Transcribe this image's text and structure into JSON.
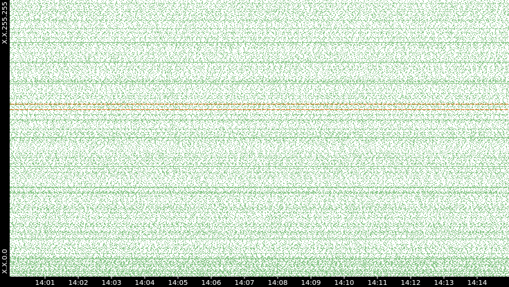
{
  "chart_data": {
    "type": "scatter",
    "y_axis_labels": {
      "top": "X.X.255.255",
      "bottom": "X.X.0.0"
    },
    "categories": [
      "14:01",
      "14:02",
      "14:03",
      "14:04",
      "14:05",
      "14:06",
      "14:07",
      "14:08",
      "14:09",
      "14:10",
      "14:11",
      "14:12",
      "14:13",
      "14:14"
    ],
    "color": "#8cc88c",
    "highlight_color": "#e07820"
  }
}
